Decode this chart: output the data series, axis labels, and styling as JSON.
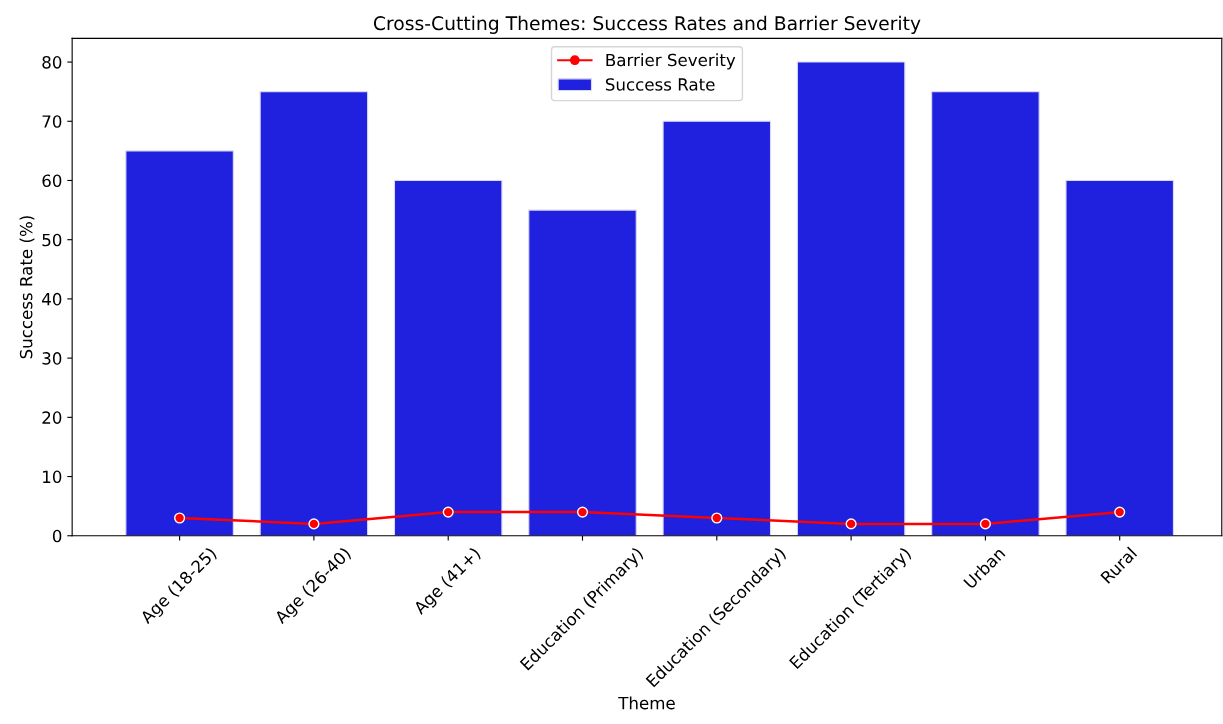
{
  "chart_data": {
    "type": "bar",
    "title": "Cross-Cutting Themes: Success Rates and Barrier Severity",
    "xlabel": "Theme",
    "ylabel": "Success Rate (%)",
    "categories": [
      "Age (18-25)",
      "Age (26-40)",
      "Age (41+)",
      "Education (Primary)",
      "Education (Secondary)",
      "Education (Tertiary)",
      "Urban",
      "Rural"
    ],
    "series": [
      {
        "name": "Barrier Severity",
        "type": "line",
        "color": "#ff0000",
        "values": [
          3,
          2,
          4,
          4,
          3,
          2,
          2,
          4
        ]
      },
      {
        "name": "Success Rate",
        "color": "#2020df",
        "values": [
          65,
          75,
          60,
          55,
          70,
          80,
          75,
          60
        ]
      }
    ],
    "ylim": [
      0,
      84
    ],
    "yticks": [
      0,
      10,
      20,
      30,
      40,
      50,
      60,
      70,
      80
    ],
    "grid": false,
    "legend": "top",
    "marker": "circle",
    "line_style": "solid"
  }
}
